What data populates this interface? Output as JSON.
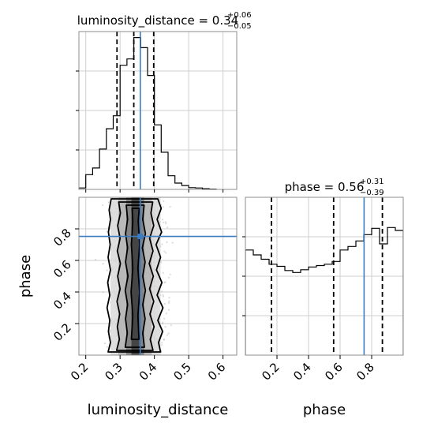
{
  "chart_data": [
    {
      "type": "histogram",
      "panel": "luminosity_distance marginal",
      "title": {
        "base": "luminosity_distance = 0.34",
        "sup": "+0.06",
        "sub": "−0.05"
      },
      "x_range": [
        0.18,
        0.64
      ],
      "y_ticks_labeled": false,
      "grid": true,
      "bin_edges": [
        0.18,
        0.2,
        0.22,
        0.24,
        0.26,
        0.28,
        0.3,
        0.32,
        0.34,
        0.36,
        0.38,
        0.4,
        0.42,
        0.44,
        0.46,
        0.48,
        0.5,
        0.52,
        0.54,
        0.56,
        0.58
      ],
      "counts": [
        0.4,
        4.2,
        6.1,
        11.5,
        17.3,
        21.0,
        35.4,
        37.2,
        43.3,
        40.4,
        32.5,
        18.4,
        10.6,
        3.9,
        1.8,
        1.1,
        0.5,
        0.4,
        0.2,
        0.1
      ],
      "y_max": 45,
      "quantile_lines": [
        0.291,
        0.34,
        0.398
      ],
      "truth": 0.359
    },
    {
      "type": "histogram",
      "panel": "phase marginal",
      "title": {
        "base": "phase = 0.56",
        "sup": "+0.31",
        "sub": "−0.39"
      },
      "x_range": [
        0.0,
        1.0
      ],
      "y_ticks_labeled": false,
      "grid": true,
      "bin_edges": [
        0.0,
        0.05,
        0.1,
        0.15,
        0.2,
        0.25,
        0.3,
        0.35,
        0.4,
        0.45,
        0.5,
        0.55,
        0.6,
        0.65,
        0.7,
        0.75,
        0.8,
        0.85,
        0.9,
        0.95,
        1.0
      ],
      "counts": [
        53.3,
        50.8,
        48.6,
        46.1,
        45.0,
        42.9,
        41.9,
        43.3,
        44.7,
        45.4,
        46.1,
        47.5,
        53.3,
        55.1,
        57.9,
        61.1,
        64.3,
        56.4,
        64.7,
        63.2
      ],
      "y_max": 80,
      "quantile_lines": [
        0.165,
        0.559,
        0.868
      ],
      "truth": 0.752
    },
    {
      "type": "2d-density",
      "panel": "luminosity_distance vs phase",
      "xlabel": "luminosity_distance",
      "ylabel": "phase",
      "x_range": [
        0.18,
        0.64
      ],
      "y_range": [
        0.0,
        1.0
      ],
      "x_ticks": [
        0.2,
        0.3,
        0.4,
        0.5,
        0.6
      ],
      "x_tick_labels": [
        "0.2",
        "0.3",
        "0.4",
        "0.5",
        "0.6"
      ],
      "y_ticks": [
        0.2,
        0.4,
        0.6,
        0.8
      ],
      "y_tick_labels": [
        "0.2",
        "0.4",
        "0.6",
        "0.8"
      ],
      "grid": true,
      "truth": {
        "x": 0.359,
        "y": 0.752
      },
      "contours": [
        {
          "level": "outer",
          "points": [
            [
              0.265,
              0.02
            ],
            [
              0.272,
              0.08
            ],
            [
              0.266,
              0.15
            ],
            [
              0.27,
              0.22
            ],
            [
              0.262,
              0.3
            ],
            [
              0.27,
              0.38
            ],
            [
              0.264,
              0.46
            ],
            [
              0.272,
              0.54
            ],
            [
              0.265,
              0.62
            ],
            [
              0.271,
              0.7
            ],
            [
              0.266,
              0.78
            ],
            [
              0.272,
              0.86
            ],
            [
              0.268,
              0.92
            ],
            [
              0.274,
              0.99
            ],
            [
              0.41,
              0.99
            ],
            [
              0.42,
              0.93
            ],
            [
              0.408,
              0.86
            ],
            [
              0.421,
              0.78
            ],
            [
              0.405,
              0.7
            ],
            [
              0.418,
              0.62
            ],
            [
              0.406,
              0.54
            ],
            [
              0.422,
              0.46
            ],
            [
              0.408,
              0.38
            ],
            [
              0.425,
              0.3
            ],
            [
              0.41,
              0.22
            ],
            [
              0.424,
              0.15
            ],
            [
              0.412,
              0.08
            ],
            [
              0.418,
              0.02
            ]
          ]
        },
        {
          "level": "middle",
          "points": [
            [
              0.29,
              0.03
            ],
            [
              0.298,
              0.1
            ],
            [
              0.292,
              0.18
            ],
            [
              0.299,
              0.26
            ],
            [
              0.291,
              0.34
            ],
            [
              0.3,
              0.42
            ],
            [
              0.293,
              0.5
            ],
            [
              0.301,
              0.58
            ],
            [
              0.292,
              0.66
            ],
            [
              0.3,
              0.74
            ],
            [
              0.293,
              0.82
            ],
            [
              0.301,
              0.9
            ],
            [
              0.296,
              0.97
            ],
            [
              0.395,
              0.97
            ],
            [
              0.39,
              0.9
            ],
            [
              0.398,
              0.82
            ],
            [
              0.386,
              0.74
            ],
            [
              0.396,
              0.66
            ],
            [
              0.385,
              0.58
            ],
            [
              0.397,
              0.5
            ],
            [
              0.386,
              0.42
            ],
            [
              0.398,
              0.34
            ],
            [
              0.387,
              0.26
            ],
            [
              0.399,
              0.18
            ],
            [
              0.388,
              0.1
            ],
            [
              0.396,
              0.03
            ]
          ]
        },
        {
          "level": "inner",
          "points": [
            [
              0.315,
              0.05
            ],
            [
              0.321,
              0.14
            ],
            [
              0.316,
              0.23
            ],
            [
              0.322,
              0.32
            ],
            [
              0.315,
              0.41
            ],
            [
              0.323,
              0.5
            ],
            [
              0.316,
              0.59
            ],
            [
              0.322,
              0.68
            ],
            [
              0.316,
              0.77
            ],
            [
              0.322,
              0.86
            ],
            [
              0.318,
              0.95
            ],
            [
              0.37,
              0.95
            ],
            [
              0.366,
              0.86
            ],
            [
              0.374,
              0.77
            ],
            [
              0.365,
              0.68
            ],
            [
              0.373,
              0.59
            ],
            [
              0.366,
              0.5
            ],
            [
              0.374,
              0.41
            ],
            [
              0.366,
              0.32
            ],
            [
              0.373,
              0.23
            ],
            [
              0.366,
              0.14
            ],
            [
              0.371,
              0.05
            ]
          ]
        },
        {
          "level": "core",
          "points": [
            [
              0.333,
              0.1
            ],
            [
              0.337,
              0.25
            ],
            [
              0.332,
              0.4
            ],
            [
              0.337,
              0.55
            ],
            [
              0.333,
              0.7
            ],
            [
              0.337,
              0.85
            ],
            [
              0.335,
              0.93
            ],
            [
              0.356,
              0.93
            ],
            [
              0.353,
              0.85
            ],
            [
              0.357,
              0.7
            ],
            [
              0.352,
              0.55
            ],
            [
              0.357,
              0.4
            ],
            [
              0.352,
              0.25
            ],
            [
              0.355,
              0.1
            ]
          ]
        }
      ]
    }
  ]
}
